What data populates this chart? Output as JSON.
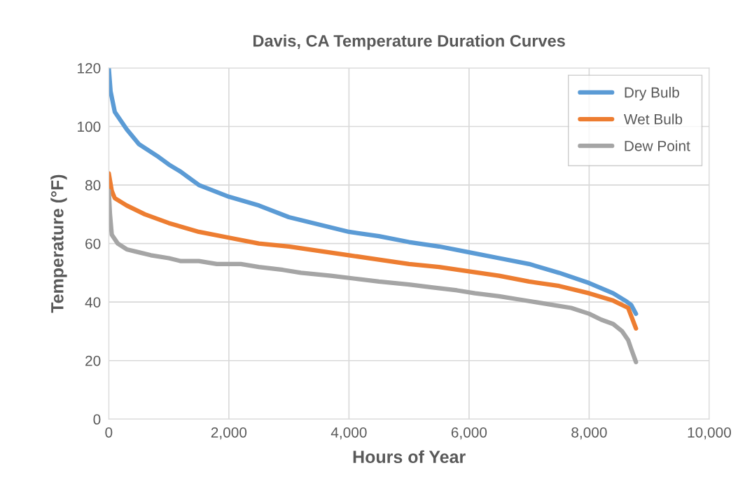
{
  "chart_data": {
    "type": "line",
    "title": "Davis, CA Temperature Duration Curves",
    "xlabel": "Hours of Year",
    "ylabel": "Temperature (°F)",
    "xlim": [
      0,
      10000
    ],
    "xticks": [
      {
        "value": 0,
        "label": "0"
      },
      {
        "value": 2000,
        "label": "2,000"
      },
      {
        "value": 4000,
        "label": "4,000"
      },
      {
        "value": 6000,
        "label": "6,000"
      },
      {
        "value": 8000,
        "label": "8,000"
      },
      {
        "value": 10000,
        "label": "10,000"
      }
    ],
    "ylim": [
      0,
      120
    ],
    "yticks": [
      0,
      20,
      40,
      60,
      80,
      100,
      120
    ],
    "grid": true,
    "legend": "top right",
    "marker": "none",
    "line_style": "solid",
    "series": [
      {
        "name": "Dry Bulb",
        "color": "#5b9bd5",
        "x": [
          0,
          30,
          100,
          200,
          300,
          500,
          800,
          1000,
          1200,
          1500,
          2000,
          2500,
          3000,
          3500,
          4000,
          4500,
          5000,
          5500,
          6000,
          6500,
          7000,
          7500,
          8000,
          8400,
          8600,
          8700,
          8780
        ],
        "values": [
          120,
          112,
          105,
          102,
          99,
          94,
          90,
          87,
          84.5,
          80,
          76,
          73,
          69,
          66.5,
          64,
          62.5,
          60.5,
          59,
          57,
          55,
          53,
          50,
          46.5,
          43,
          40.5,
          39,
          36
        ]
      },
      {
        "name": "Wet Bulb",
        "color": "#ed7d31",
        "x": [
          0,
          50,
          100,
          300,
          600,
          1000,
          1500,
          2000,
          2500,
          3000,
          3500,
          4000,
          4500,
          5000,
          5500,
          6000,
          6500,
          7000,
          7500,
          8000,
          8400,
          8650,
          8780
        ],
        "values": [
          84,
          78,
          75.5,
          73,
          70,
          67,
          64,
          62,
          60,
          59,
          57.5,
          56,
          54.5,
          53,
          52,
          50.5,
          49,
          47,
          45.5,
          43,
          40.5,
          38,
          31
        ]
      },
      {
        "name": "Dew Point",
        "color": "#a5a5a5",
        "x": [
          0,
          20,
          50,
          150,
          300,
          500,
          700,
          1000,
          1200,
          1500,
          1800,
          2200,
          2500,
          2900,
          3200,
          3700,
          4100,
          4500,
          5000,
          5400,
          5800,
          6100,
          6500,
          6800,
          7100,
          7400,
          7700,
          8000,
          8200,
          8400,
          8550,
          8650,
          8700,
          8780
        ],
        "values": [
          78,
          70,
          63,
          60,
          58,
          57,
          56,
          55,
          54,
          54,
          53,
          53,
          52,
          51,
          50,
          49,
          48,
          47,
          46,
          45,
          44,
          43,
          42,
          41,
          40,
          39,
          38,
          36,
          34,
          32.5,
          30,
          27,
          24,
          19.5
        ]
      }
    ]
  }
}
